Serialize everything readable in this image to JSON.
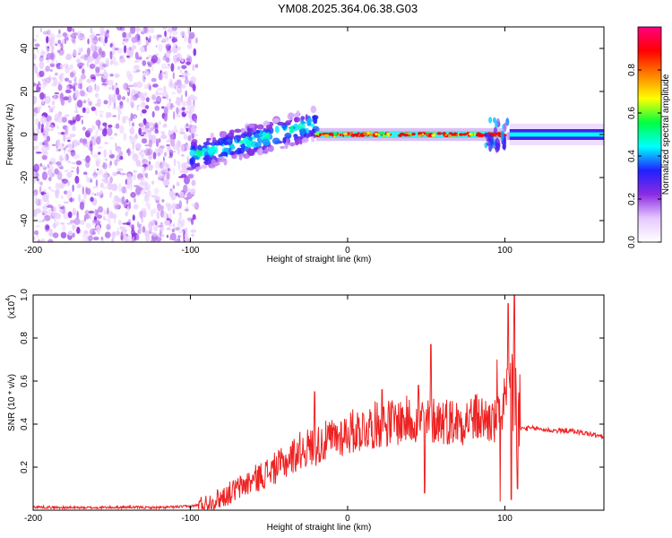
{
  "title": "YM08.2025.364.06.38.G03",
  "chart_data": [
    {
      "type": "heatmap",
      "name": "spectrogram",
      "xlabel": "Height of straight line (km)",
      "ylabel": "Frequency (Hz)",
      "xlim": [
        -200,
        163
      ],
      "ylim": [
        -50,
        50
      ],
      "xticks": [
        -200,
        -100,
        0,
        100
      ],
      "yticks": [
        -40,
        -20,
        0,
        20,
        40
      ],
      "colorbar": {
        "label": "Normalized spectral amplitude",
        "range": [
          0,
          1
        ],
        "ticks": [
          0.0,
          0.2,
          0.4,
          0.6,
          0.8
        ],
        "tick_labels": [
          "0.0",
          "0.2",
          "0.4",
          "0.6",
          "0.8"
        ],
        "colormap": [
          "#ffffff",
          "#e6c8ff",
          "#8a2be2",
          "#2020ff",
          "#00ffff",
          "#00ff40",
          "#ffff00",
          "#ff8000",
          "#ff0000",
          "#ff0080"
        ]
      },
      "features": [
        {
          "x_range": [
            -200,
            -100
          ],
          "freq_range": [
            -50,
            50
          ],
          "description": "scattered noise",
          "amplitude": 0.1
        },
        {
          "x_range": [
            -100,
            -20
          ],
          "freq_center_start": -10,
          "freq_center_end": 5,
          "amplitude": 0.35
        },
        {
          "x_range": [
            -20,
            100
          ],
          "freq_center": 0,
          "amplitude": 0.9
        },
        {
          "x_range": [
            103,
            163
          ],
          "freq_center": 0,
          "amplitude": 0.45
        }
      ]
    },
    {
      "type": "line",
      "name": "snr",
      "xlabel": "Height of straight line (km)",
      "ylabel": "SNR (10 * v/v)",
      "scale_label": "(x10",
      "scale_exponent": "4",
      "xlim": [
        -200,
        163
      ],
      "ylim": [
        0,
        1.0
      ],
      "xticks": [
        -200,
        -100,
        0,
        100
      ],
      "yticks": [
        0.2,
        0.4,
        0.6,
        0.8,
        1.0
      ],
      "ytick_labels": [
        "0.2",
        "0.4",
        "0.6",
        "0.8",
        "1.0"
      ],
      "color": "#ee2222",
      "series": [
        {
          "name": "SNR",
          "x": [
            -200,
            -180,
            -160,
            -140,
            -120,
            -100,
            -90,
            -80,
            -70,
            -60,
            -50,
            -40,
            -30,
            -20,
            -10,
            0,
            10,
            20,
            30,
            40,
            47,
            50,
            53,
            60,
            70,
            80,
            90,
            95,
            97,
            100,
            103,
            106,
            108,
            110,
            120,
            130,
            140,
            150,
            163
          ],
          "values": [
            0.015,
            0.012,
            0.012,
            0.014,
            0.012,
            0.018,
            0.03,
            0.06,
            0.1,
            0.14,
            0.18,
            0.22,
            0.28,
            0.3,
            0.33,
            0.36,
            0.38,
            0.4,
            0.41,
            0.42,
            0.43,
            0.4,
            0.42,
            0.42,
            0.41,
            0.43,
            0.42,
            0.4,
            0.45,
            0.5,
            0.55,
            0.6,
            0.42,
            0.38,
            0.38,
            0.37,
            0.37,
            0.36,
            0.34
          ]
        }
      ],
      "spikes": [
        {
          "x": -21,
          "value": 0.55
        },
        {
          "x": 22,
          "value": 0.56
        },
        {
          "x": 45,
          "value": 0.58
        },
        {
          "x": 49,
          "value": 0.08
        },
        {
          "x": 53,
          "value": 0.77
        },
        {
          "x": 95,
          "value": 0.7
        },
        {
          "x": 97,
          "value": 0.04
        },
        {
          "x": 102,
          "value": 0.96
        },
        {
          "x": 104,
          "value": 0.05
        },
        {
          "x": 106,
          "value": 1.0
        },
        {
          "x": 108,
          "value": 0.1
        }
      ]
    }
  ]
}
